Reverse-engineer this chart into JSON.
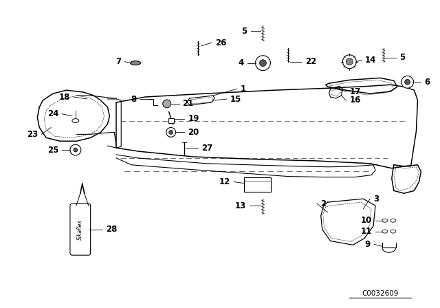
{
  "bg_color": "#ffffff",
  "fig_width": 6.4,
  "fig_height": 4.48,
  "dpi": 100,
  "diagram_ref": "C0032609",
  "label_fontsize": 8.5,
  "ref_fontsize": 7.5
}
